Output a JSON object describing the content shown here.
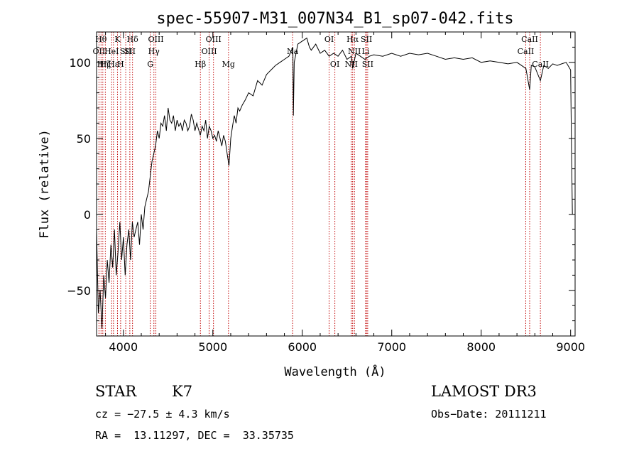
{
  "chart_data": {
    "type": "line",
    "title": "spec-55907-M31_007N34_B1_sp07-042.fits",
    "xlabel": "Wavelength (Å)",
    "ylabel": "Flux (relative)",
    "xlim": [
      3700,
      9050
    ],
    "ylim": [
      -80,
      120
    ],
    "xticks": [
      4000,
      5000,
      6000,
      7000,
      8000,
      9000
    ],
    "yticks": [
      -50,
      0,
      50,
      100
    ],
    "grid": false,
    "series": [
      {
        "x": [
          3700,
          3720,
          3740,
          3760,
          3780,
          3800,
          3820,
          3840,
          3860,
          3880,
          3900,
          3920,
          3940,
          3960,
          3980,
          4000,
          4020,
          4040,
          4060,
          4080,
          4100,
          4120,
          4140,
          4160,
          4180,
          4200,
          4220,
          4240,
          4260,
          4280,
          4300,
          4320,
          4340,
          4360,
          4380,
          4400,
          4420,
          4440,
          4460,
          4480,
          4500,
          4520,
          4540,
          4560,
          4580,
          4600,
          4620,
          4640,
          4660,
          4680,
          4700,
          4720,
          4740,
          4760,
          4780,
          4800,
          4820,
          4840,
          4860,
          4880,
          4900,
          4920,
          4940,
          4960,
          4980,
          5000,
          5020,
          5040,
          5060,
          5080,
          5100,
          5120,
          5140,
          5160,
          5180,
          5200,
          5220,
          5240,
          5260,
          5280,
          5300,
          5330,
          5360,
          5400,
          5450,
          5500,
          5550,
          5600,
          5650,
          5700,
          5750,
          5800,
          5850,
          5880,
          5895,
          5900,
          5910,
          5950,
          6000,
          6050,
          6080,
          6100,
          6150,
          6200,
          6250,
          6300,
          6350,
          6400,
          6450,
          6500,
          6550,
          6563,
          6600,
          6650,
          6700,
          6750,
          6800,
          6900,
          7000,
          7100,
          7200,
          7300,
          7400,
          7500,
          7600,
          7700,
          7800,
          7900,
          8000,
          8100,
          8200,
          8300,
          8400,
          8450,
          8500,
          8542,
          8560,
          8600,
          8662,
          8700,
          8750,
          8800,
          8850,
          8900,
          8950,
          8980,
          9000,
          9010,
          9020
        ],
        "y": [
          -10,
          -65,
          -50,
          -75,
          -40,
          -55,
          -30,
          -45,
          -20,
          -35,
          -10,
          -40,
          -25,
          -5,
          -30,
          -15,
          -40,
          -20,
          -10,
          -30,
          -5,
          -15,
          -10,
          -5,
          -20,
          0,
          -10,
          5,
          10,
          15,
          25,
          35,
          40,
          45,
          55,
          50,
          60,
          58,
          65,
          55,
          70,
          62,
          60,
          65,
          55,
          62,
          58,
          60,
          55,
          62,
          60,
          55,
          58,
          66,
          62,
          55,
          60,
          56,
          52,
          58,
          55,
          62,
          50,
          58,
          55,
          50,
          52,
          48,
          55,
          50,
          45,
          52,
          48,
          40,
          32,
          50,
          58,
          65,
          60,
          70,
          68,
          72,
          75,
          80,
          78,
          88,
          85,
          92,
          95,
          98,
          100,
          102,
          104,
          108,
          110,
          65,
          100,
          112,
          114,
          116,
          110,
          108,
          112,
          106,
          108,
          104,
          106,
          104,
          108,
          102,
          104,
          96,
          106,
          104,
          102,
          104,
          105,
          104,
          106,
          104,
          106,
          105,
          106,
          104,
          102,
          103,
          102,
          103,
          100,
          101,
          100,
          99,
          100,
          98,
          96,
          82,
          98,
          97,
          88,
          98,
          96,
          99,
          98,
          99,
          100,
          97,
          95,
          40,
          0
        ]
      }
    ],
    "lines": [
      {
        "x": 3727,
        "lab": "OII",
        "row": 1
      },
      {
        "x": 3750,
        "lab": "Hθ",
        "row": 0
      },
      {
        "x": 3770,
        "lab": "Hη",
        "row": 2
      },
      {
        "x": 3798,
        "lab": "Hζ",
        "row": 2
      },
      {
        "x": 3869,
        "lab": "HeI",
        "row": 1
      },
      {
        "x": 3889,
        "lab": "Hε",
        "row": 2
      },
      {
        "x": 3934,
        "lab": "K",
        "row": 0
      },
      {
        "x": 3969,
        "lab": "H",
        "row": 2
      },
      {
        "x": 4026,
        "lab": "SII",
        "row": 1
      },
      {
        "x": 4072,
        "lab": "SII",
        "row": 1
      },
      {
        "x": 4102,
        "lab": "Hδ",
        "row": 0
      },
      {
        "x": 4300,
        "lab": "G",
        "row": 2
      },
      {
        "x": 4341,
        "lab": "Hγ",
        "row": 1
      },
      {
        "x": 4363,
        "lab": "OIII",
        "row": 0
      },
      {
        "x": 4861,
        "lab": "Hβ",
        "row": 2
      },
      {
        "x": 4959,
        "lab": "OIII",
        "row": 1
      },
      {
        "x": 5007,
        "lab": "OIII",
        "row": 0
      },
      {
        "x": 5175,
        "lab": "Mg",
        "row": 2
      },
      {
        "x": 5892,
        "lab": "Na",
        "row": 1
      },
      {
        "x": 6300,
        "lab": "OI",
        "row": 0
      },
      {
        "x": 6364,
        "lab": "OI",
        "row": 2
      },
      {
        "x": 6548,
        "lab": "NII",
        "row": 2
      },
      {
        "x": 6563,
        "lab": "Hα",
        "row": 0
      },
      {
        "x": 6583,
        "lab": "NII",
        "row": 1
      },
      {
        "x": 6708,
        "lab": "Li",
        "row": 1
      },
      {
        "x": 6717,
        "lab": "SII",
        "row": 0
      },
      {
        "x": 6731,
        "lab": "SII",
        "row": 2
      },
      {
        "x": 8498,
        "lab": "CaII",
        "row": 1
      },
      {
        "x": 8542,
        "lab": "CaII",
        "row": 0
      },
      {
        "x": 8662,
        "lab": "CaII",
        "row": 2
      }
    ]
  },
  "info": {
    "class": "STAR",
    "subclass": "K7",
    "survey": "LAMOST DR3",
    "cz": "cz = −27.5 ± 4.3 km/s",
    "obsdate": "Obs−Date: 20111211",
    "radec": "RA =  13.11297, DEC =  33.35735"
  },
  "colors": {
    "line_marker": "#c00000",
    "spectrum": "#000000"
  }
}
